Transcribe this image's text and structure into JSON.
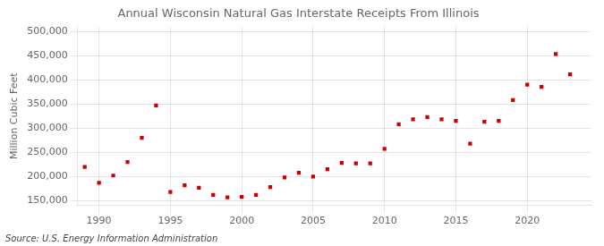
{
  "chart_data": {
    "type": "scatter",
    "title": "Annual Wisconsin Natural Gas Interstate Receipts From Illinois",
    "ylabel": "Million Cubic Feet",
    "source": "Source: U.S. Energy Information Administration",
    "color": "#cc0000",
    "marker": "square",
    "grid": true,
    "xlim": [
      1988.5,
      2024.5
    ],
    "ylim": [
      140000,
      510000
    ],
    "xticks": [
      1990,
      1995,
      2000,
      2005,
      2010,
      2015,
      2020
    ],
    "yticks": [
      {
        "value": 150000,
        "label": "150,000"
      },
      {
        "value": 200000,
        "label": "200,000"
      },
      {
        "value": 250000,
        "label": "250,000"
      },
      {
        "value": 300000,
        "label": "300,000"
      },
      {
        "value": 350000,
        "label": "350,000"
      },
      {
        "value": 400000,
        "label": "400,000"
      },
      {
        "value": 450000,
        "label": "450,000"
      },
      {
        "value": 500000,
        "label": "500,000"
      }
    ],
    "x": [
      1989,
      1990,
      1991,
      1992,
      1993,
      1994,
      1995,
      1996,
      1997,
      1998,
      1999,
      2000,
      2001,
      2002,
      2003,
      2004,
      2005,
      2006,
      2007,
      2008,
      2009,
      2010,
      2011,
      2012,
      2013,
      2014,
      2015,
      2016,
      2017,
      2018,
      2019,
      2020,
      2021,
      2022,
      2023
    ],
    "values": [
      220000,
      187000,
      202000,
      230000,
      280000,
      347000,
      168000,
      182000,
      177000,
      162000,
      157000,
      158000,
      162000,
      178000,
      198000,
      208000,
      200000,
      215000,
      228000,
      227000,
      227000,
      257000,
      308000,
      318000,
      323000,
      318000,
      315000,
      268000,
      313000,
      315000,
      358000,
      390000,
      385000,
      453000,
      411000
    ]
  }
}
